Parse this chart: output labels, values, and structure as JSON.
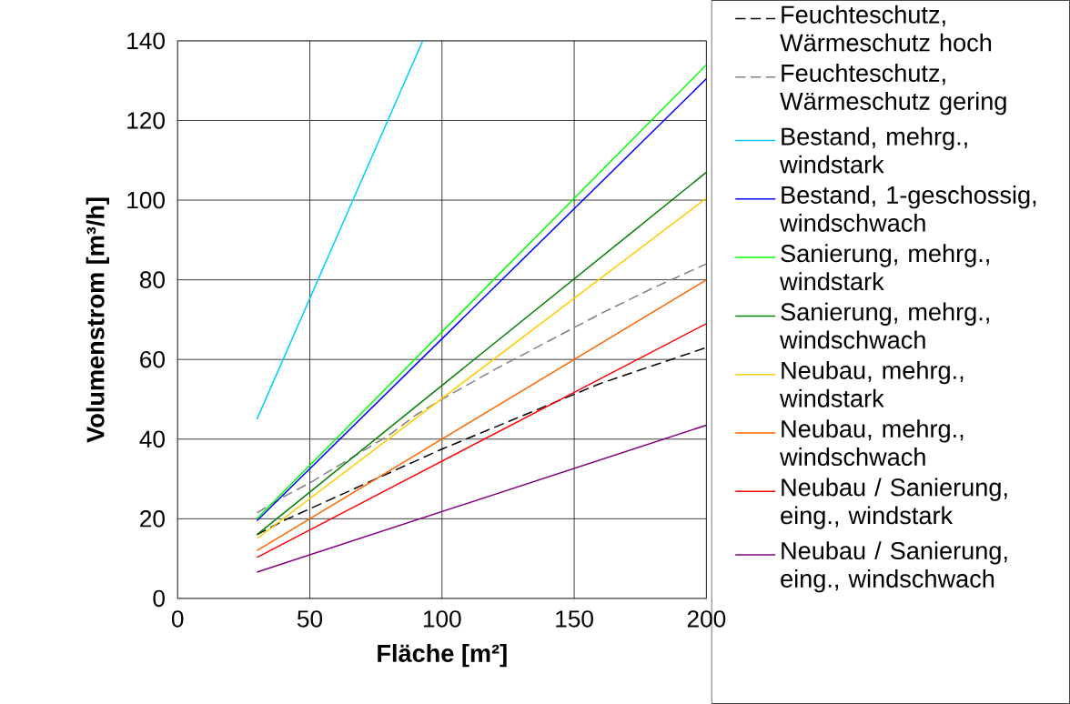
{
  "chart_data": {
    "type": "line",
    "xlabel": "Fläche [m²]",
    "ylabel": "Volumenstrom [m³/h]",
    "xlim": [
      0,
      200
    ],
    "ylim": [
      0,
      140
    ],
    "xticks": [
      0,
      50,
      100,
      150,
      200
    ],
    "yticks": [
      0,
      20,
      40,
      60,
      80,
      100,
      120,
      140
    ],
    "grid": true,
    "legend": "right",
    "marker": "none",
    "series": [
      {
        "name": "Feuchteschutz, Wärmeschutz hoch",
        "color": "#000000",
        "line_style": "dashed",
        "x": [
          30,
          40,
          50,
          60,
          70,
          80,
          90,
          100,
          120,
          140,
          160,
          180,
          200
        ],
        "values": [
          16,
          19.5,
          22.5,
          25.5,
          28.5,
          31.5,
          34.5,
          37.5,
          43,
          48.5,
          54,
          58.5,
          63
        ]
      },
      {
        "name": "Feuchteschutz, Wärmeschutz gering",
        "color": "#808080",
        "line_style": "dashed",
        "x": [
          30,
          40,
          50,
          60,
          70,
          80,
          90,
          100,
          120,
          140,
          160,
          180,
          200
        ],
        "values": [
          21.5,
          25.5,
          29,
          33,
          37,
          41,
          46,
          50,
          57.5,
          64.5,
          71.5,
          78,
          84
        ]
      },
      {
        "name": "Bestand, mehrg., windstark",
        "color": "#00ccff",
        "line_style": "solid",
        "x": [
          30,
          92.7
        ],
        "values": [
          45,
          140
        ]
      },
      {
        "name": "Bestand, 1-geschossig, windschwach",
        "color": "#0000ff",
        "line_style": "solid",
        "x": [
          30,
          200
        ],
        "values": [
          19.5,
          130.5
        ]
      },
      {
        "name": "Sanierung, mehrg., windstark",
        "color": "#00ff00",
        "line_style": "solid",
        "x": [
          30,
          200
        ],
        "values": [
          20,
          134
        ]
      },
      {
        "name": "Sanierung, mehrg., windschwach",
        "color": "#008000",
        "line_style": "solid",
        "x": [
          30,
          200
        ],
        "values": [
          16,
          107
        ]
      },
      {
        "name": "Neubau, mehrg., windstark",
        "color": "#ffcc00",
        "line_style": "solid",
        "x": [
          30,
          200
        ],
        "values": [
          15,
          100.5
        ]
      },
      {
        "name": "Neubau, mehrg., windschwach",
        "color": "#ff6600",
        "line_style": "solid",
        "x": [
          30,
          200
        ],
        "values": [
          12,
          80
        ]
      },
      {
        "name": "Neubau / Sanierung, eing., windstark",
        "color": "#ff0000",
        "line_style": "solid",
        "x": [
          30,
          200
        ],
        "values": [
          10.3,
          69
        ]
      },
      {
        "name": "Neubau / Sanierung, eing., windschwach",
        "color": "#800080",
        "line_style": "solid",
        "x": [
          30,
          200
        ],
        "values": [
          6.6,
          43.5
        ]
      }
    ]
  }
}
